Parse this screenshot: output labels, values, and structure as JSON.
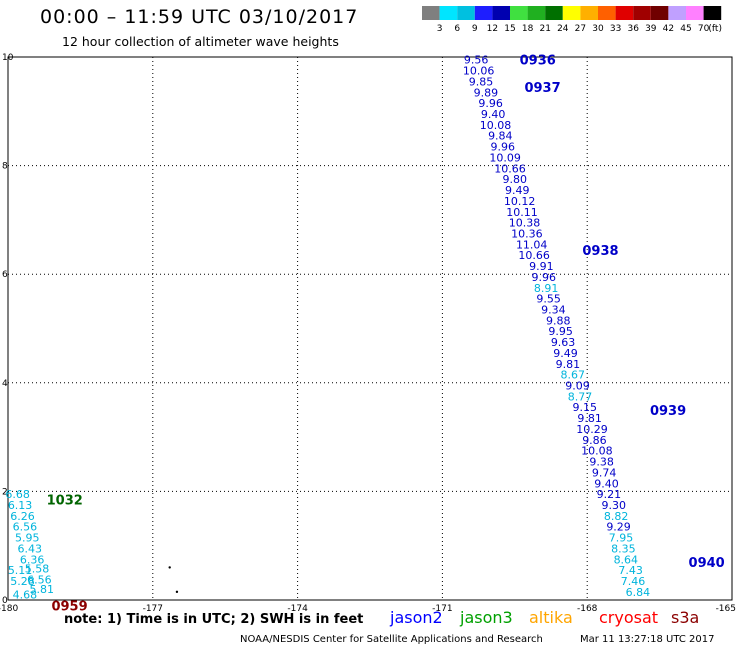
{
  "header": {
    "title": "00:00 – 11:59 UTC 03/10/2017",
    "subtitle": "12 hour collection of altimeter wave heights"
  },
  "colorbar": {
    "unit": "(ft)",
    "labels": [
      "3",
      "6",
      "9",
      "12",
      "15",
      "18",
      "21",
      "24",
      "27",
      "30",
      "33",
      "36",
      "39",
      "42",
      "45",
      "70"
    ],
    "colors": [
      "#7f7f7f",
      "#00e5ff",
      "#00c0e0",
      "#1e1eff",
      "#0000b0",
      "#40e040",
      "#20b020",
      "#007000",
      "#ffff00",
      "#ffb000",
      "#ff6000",
      "#e00000",
      "#a00000",
      "#700000",
      "#c0a0ff",
      "#ff80ff",
      "#000000"
    ]
  },
  "chart_data": {
    "type": "scatter",
    "x_ticks": [
      "-180",
      "-177",
      "-174",
      "-171",
      "-168",
      "-165"
    ],
    "y_ticks": [
      "0",
      "2",
      "4",
      "6",
      "8",
      "10"
    ],
    "xlim": [
      -180,
      -165
    ],
    "ylim": [
      0,
      10
    ],
    "grid": true,
    "pass_labels": [
      {
        "label": "0936",
        "x": -169.4,
        "y": 9.95,
        "color": "#0000c8"
      },
      {
        "label": "0937",
        "x": -169.3,
        "y": 9.45,
        "color": "#0000c8"
      },
      {
        "label": "0938",
        "x": -168.1,
        "y": 6.45,
        "color": "#0000c8"
      },
      {
        "label": "0939",
        "x": -166.7,
        "y": 3.5,
        "color": "#0000c8"
      },
      {
        "label": "0940",
        "x": -165.9,
        "y": 0.7,
        "color": "#0000c8"
      },
      {
        "label": "1032",
        "x": -179.2,
        "y": 1.85,
        "color": "#006400"
      },
      {
        "label": "0959",
        "x": -179.1,
        "y": -0.1,
        "color": "#8b0000"
      }
    ],
    "series": [
      {
        "name": "jason2",
        "points": [
          {
            "x": -170.3,
            "y": 9.95,
            "v": "9.56",
            "c": "#0000c8"
          },
          {
            "x": -170.25,
            "y": 9.75,
            "v": "10.06",
            "c": "#0000c8"
          },
          {
            "x": -170.2,
            "y": 9.55,
            "v": "9.85",
            "c": "#0000c8"
          },
          {
            "x": -170.1,
            "y": 9.35,
            "v": "9.89",
            "c": "#0000c8"
          },
          {
            "x": -170.0,
            "y": 9.15,
            "v": "9.96",
            "c": "#0000c8"
          },
          {
            "x": -169.95,
            "y": 8.95,
            "v": "9.40",
            "c": "#0000c8"
          },
          {
            "x": -169.9,
            "y": 8.75,
            "v": "10.08",
            "c": "#0000c8"
          },
          {
            "x": -169.8,
            "y": 8.55,
            "v": "9.84",
            "c": "#0000c8"
          },
          {
            "x": -169.75,
            "y": 8.35,
            "v": "9.96",
            "c": "#0000c8"
          },
          {
            "x": -169.7,
            "y": 8.15,
            "v": "10.09",
            "c": "#0000c8"
          },
          {
            "x": -169.6,
            "y": 7.95,
            "v": "10.66",
            "c": "#0000c8"
          },
          {
            "x": -169.5,
            "y": 7.75,
            "v": "9.80",
            "c": "#0000c8"
          },
          {
            "x": -169.45,
            "y": 7.55,
            "v": "9.49",
            "c": "#0000c8"
          },
          {
            "x": -169.4,
            "y": 7.35,
            "v": "10.12",
            "c": "#0000c8"
          },
          {
            "x": -169.35,
            "y": 7.15,
            "v": "10.11",
            "c": "#0000c8"
          },
          {
            "x": -169.3,
            "y": 6.95,
            "v": "10.38",
            "c": "#0000c8"
          },
          {
            "x": -169.25,
            "y": 6.75,
            "v": "10.36",
            "c": "#0000c8"
          },
          {
            "x": -169.15,
            "y": 6.55,
            "v": "11.04",
            "c": "#0000c8"
          },
          {
            "x": -169.1,
            "y": 6.35,
            "v": "10.66",
            "c": "#0000c8"
          },
          {
            "x": -168.95,
            "y": 6.15,
            "v": "9.91",
            "c": "#0000c8"
          },
          {
            "x": -168.9,
            "y": 5.95,
            "v": "9.96",
            "c": "#0000c8"
          },
          {
            "x": -168.85,
            "y": 5.75,
            "v": "8.91",
            "c": "#00b4dc"
          },
          {
            "x": -168.8,
            "y": 5.55,
            "v": "9.55",
            "c": "#0000c8"
          },
          {
            "x": -168.7,
            "y": 5.35,
            "v": "9.34",
            "c": "#0000c8"
          },
          {
            "x": -168.6,
            "y": 5.15,
            "v": "9.88",
            "c": "#0000c8"
          },
          {
            "x": -168.55,
            "y": 4.95,
            "v": "9.95",
            "c": "#0000c8"
          },
          {
            "x": -168.5,
            "y": 4.75,
            "v": "9.63",
            "c": "#0000c8"
          },
          {
            "x": -168.45,
            "y": 4.55,
            "v": "9.49",
            "c": "#0000c8"
          },
          {
            "x": -168.4,
            "y": 4.35,
            "v": "9.81",
            "c": "#0000c8"
          },
          {
            "x": -168.3,
            "y": 4.15,
            "v": "8.67",
            "c": "#00b4dc"
          },
          {
            "x": -168.2,
            "y": 3.95,
            "v": "9.09",
            "c": "#0000c8"
          },
          {
            "x": -168.15,
            "y": 3.75,
            "v": "8.77",
            "c": "#00b4dc"
          },
          {
            "x": -168.05,
            "y": 3.55,
            "v": "9.15",
            "c": "#0000c8"
          },
          {
            "x": -167.95,
            "y": 3.35,
            "v": "9.81",
            "c": "#0000c8"
          },
          {
            "x": -167.9,
            "y": 3.15,
            "v": "10.29",
            "c": "#0000c8"
          },
          {
            "x": -167.85,
            "y": 2.95,
            "v": "9.86",
            "c": "#0000c8"
          },
          {
            "x": -167.8,
            "y": 2.75,
            "v": "10.08",
            "c": "#0000c8"
          },
          {
            "x": -167.7,
            "y": 2.55,
            "v": "9.38",
            "c": "#0000c8"
          },
          {
            "x": -167.65,
            "y": 2.35,
            "v": "9.74",
            "c": "#0000c8"
          },
          {
            "x": -167.6,
            "y": 2.15,
            "v": "9.40",
            "c": "#0000c8"
          },
          {
            "x": -167.55,
            "y": 1.95,
            "v": "9.21",
            "c": "#0000c8"
          },
          {
            "x": -167.45,
            "y": 1.75,
            "v": "9.30",
            "c": "#0000c8"
          },
          {
            "x": -167.4,
            "y": 1.55,
            "v": "8.82",
            "c": "#00b4dc"
          },
          {
            "x": -167.35,
            "y": 1.35,
            "v": "9.29",
            "c": "#0000c8"
          },
          {
            "x": -167.3,
            "y": 1.15,
            "v": "7.95",
            "c": "#00b4dc"
          },
          {
            "x": -167.25,
            "y": 0.95,
            "v": "8.35",
            "c": "#00b4dc"
          },
          {
            "x": -167.2,
            "y": 0.75,
            "v": "8.64",
            "c": "#00b4dc"
          },
          {
            "x": -167.1,
            "y": 0.55,
            "v": "7.43",
            "c": "#00b4dc"
          },
          {
            "x": -167.05,
            "y": 0.35,
            "v": "7.46",
            "c": "#00b4dc"
          },
          {
            "x": -166.95,
            "y": 0.15,
            "v": "6.84",
            "c": "#00b4dc"
          }
        ]
      },
      {
        "name": "jason3",
        "points": [
          {
            "x": -179.8,
            "y": 1.95,
            "v": "6.68",
            "c": "#00b4dc"
          },
          {
            "x": -179.75,
            "y": 1.75,
            "v": "6.13",
            "c": "#00b4dc"
          },
          {
            "x": -179.7,
            "y": 1.55,
            "v": "6.26",
            "c": "#00b4dc"
          },
          {
            "x": -179.65,
            "y": 1.35,
            "v": "6.56",
            "c": "#00b4dc"
          },
          {
            "x": -179.6,
            "y": 1.15,
            "v": "5.95",
            "c": "#00b4dc"
          },
          {
            "x": -179.55,
            "y": 0.95,
            "v": "6.43",
            "c": "#00b4dc"
          },
          {
            "x": -179.5,
            "y": 0.75,
            "v": "6.36",
            "c": "#00b4dc"
          },
          {
            "x": -179.75,
            "y": 0.55,
            "v": "5.11",
            "c": "#00b4dc"
          },
          {
            "x": -179.4,
            "y": 0.58,
            "v": "5.58",
            "c": "#00b4dc"
          },
          {
            "x": -179.7,
            "y": 0.35,
            "v": "5.28",
            "c": "#00b4dc"
          },
          {
            "x": -179.35,
            "y": 0.38,
            "v": "6.56",
            "c": "#00b4dc"
          },
          {
            "x": -179.3,
            "y": 0.2,
            "v": "5.81",
            "c": "#00b4dc"
          },
          {
            "x": -179.65,
            "y": 0.1,
            "v": "4.68",
            "c": "#00b4dc"
          }
        ]
      }
    ],
    "dots": [
      {
        "x": -176.65,
        "y": 0.6
      },
      {
        "x": -176.5,
        "y": 0.15
      }
    ]
  },
  "footer": {
    "note": "note:  1) Time is in UTC;  2) SWH is in feet",
    "satellites": [
      {
        "name": "jason2",
        "color": "#0000ff"
      },
      {
        "name": "jason3",
        "color": "#00a000"
      },
      {
        "name": "altika",
        "color": "#ffa500"
      },
      {
        "name": "cryosat",
        "color": "#ff0000"
      },
      {
        "name": "s3a",
        "color": "#8b0000"
      }
    ],
    "credit": "NOAA/NESDIS Center for Satellite Applications and Research",
    "timestamp": "Mar 11 13:27:18 UTC 2017"
  }
}
